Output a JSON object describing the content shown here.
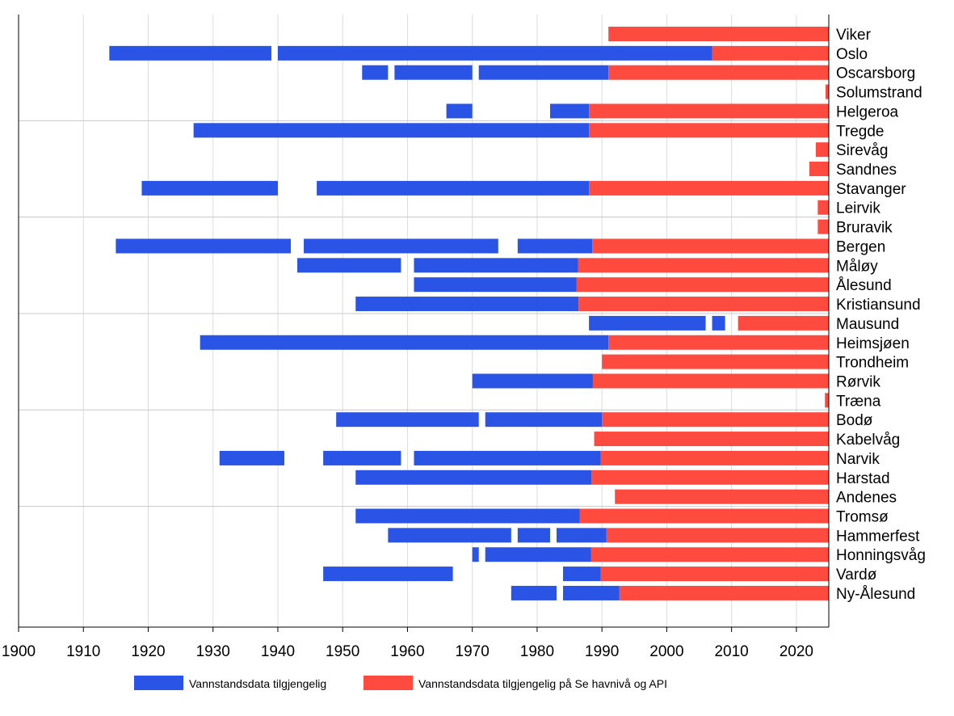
{
  "chart_data": {
    "type": "bar",
    "orientation": "horizontal-timeline",
    "xlim": [
      1900,
      2025
    ],
    "x_ticks": [
      1900,
      1910,
      1920,
      1930,
      1940,
      1950,
      1960,
      1970,
      1980,
      1990,
      2000,
      2010,
      2020
    ],
    "grid": "horizontal separators every 5 stations, vertical gridlines at each decade",
    "legend_placement": "bottom",
    "colors": {
      "historical": "#2a54e6",
      "api": "#ff4a40"
    },
    "series": [
      {
        "key": "historical",
        "name": "Vannstandsdata tilgjengelig"
      },
      {
        "key": "api",
        "name": "Vannstandsdata tilgjengelig på Se havnivå og API"
      }
    ],
    "stations": [
      {
        "name": "Viker",
        "historical": [],
        "api": [
          [
            1991,
            2025
          ]
        ]
      },
      {
        "name": "Oslo",
        "historical": [
          [
            1914,
            1939
          ],
          [
            1940,
            2007
          ]
        ],
        "api": [
          [
            2007,
            2025
          ]
        ]
      },
      {
        "name": "Oscarsborg",
        "historical": [
          [
            1953,
            1957
          ],
          [
            1958,
            1970
          ],
          [
            1971,
            1991
          ]
        ],
        "api": [
          [
            1991,
            2025
          ]
        ]
      },
      {
        "name": "Solumstrand",
        "historical": [],
        "api": [
          [
            2024.5,
            2025
          ]
        ]
      },
      {
        "name": "Helgeroa",
        "historical": [
          [
            1966,
            1970
          ],
          [
            1982,
            1988
          ]
        ],
        "api": [
          [
            1988,
            2025
          ]
        ]
      },
      {
        "name": "Tregde",
        "historical": [
          [
            1927,
            1988
          ]
        ],
        "api": [
          [
            1988,
            2025
          ]
        ]
      },
      {
        "name": "Sirevåg",
        "historical": [],
        "api": [
          [
            2023,
            2025
          ]
        ]
      },
      {
        "name": "Sandnes",
        "historical": [],
        "api": [
          [
            2022,
            2025
          ]
        ]
      },
      {
        "name": "Stavanger",
        "historical": [
          [
            1919,
            1940
          ],
          [
            1946,
            1988
          ]
        ],
        "api": [
          [
            1988,
            2025
          ]
        ]
      },
      {
        "name": "Leirvik",
        "historical": [],
        "api": [
          [
            2023.3,
            2025
          ]
        ]
      },
      {
        "name": "Bruravik",
        "historical": [],
        "api": [
          [
            2023.3,
            2025
          ]
        ]
      },
      {
        "name": "Bergen",
        "historical": [
          [
            1915,
            1942
          ],
          [
            1944,
            1974
          ],
          [
            1977,
            1988.5
          ]
        ],
        "api": [
          [
            1988.5,
            2025
          ]
        ]
      },
      {
        "name": "Måløy",
        "historical": [
          [
            1943,
            1959
          ],
          [
            1961,
            1986.3
          ]
        ],
        "api": [
          [
            1986.3,
            2025
          ]
        ]
      },
      {
        "name": "Ålesund",
        "historical": [
          [
            1961,
            1986.1
          ]
        ],
        "api": [
          [
            1986.1,
            2025
          ]
        ]
      },
      {
        "name": "Kristiansund",
        "historical": [
          [
            1952,
            1986.4
          ]
        ],
        "api": [
          [
            1986.4,
            2025
          ]
        ]
      },
      {
        "name": "Mausund",
        "historical": [
          [
            1988,
            2006
          ],
          [
            2007,
            2009
          ]
        ],
        "api": [
          [
            2011,
            2025
          ]
        ]
      },
      {
        "name": "Heimsjøen",
        "historical": [
          [
            1928,
            1991
          ]
        ],
        "api": [
          [
            1991,
            2025
          ]
        ]
      },
      {
        "name": "Trondheim",
        "historical": [],
        "api": [
          [
            1990,
            2025
          ]
        ]
      },
      {
        "name": "Rørvik",
        "historical": [
          [
            1970,
            1988.6
          ]
        ],
        "api": [
          [
            1988.6,
            2025
          ]
        ]
      },
      {
        "name": "Træna",
        "historical": [],
        "api": [
          [
            2024.4,
            2025
          ]
        ]
      },
      {
        "name": "Bodø",
        "historical": [
          [
            1949,
            1971
          ],
          [
            1972,
            1990
          ]
        ],
        "api": [
          [
            1990,
            2025
          ]
        ]
      },
      {
        "name": "Kabelvåg",
        "historical": [],
        "api": [
          [
            1988.8,
            2025
          ]
        ]
      },
      {
        "name": "Narvik",
        "historical": [
          [
            1931,
            1941
          ],
          [
            1947,
            1959
          ],
          [
            1961,
            1989.8
          ]
        ],
        "api": [
          [
            1989.8,
            2025
          ]
        ]
      },
      {
        "name": "Harstad",
        "historical": [
          [
            1952,
            1988.4
          ]
        ],
        "api": [
          [
            1988.4,
            2025
          ]
        ]
      },
      {
        "name": "Andenes",
        "historical": [],
        "api": [
          [
            1992,
            2025
          ]
        ]
      },
      {
        "name": "Tromsø",
        "historical": [
          [
            1952,
            1986.6
          ]
        ],
        "api": [
          [
            1986.6,
            2025
          ]
        ]
      },
      {
        "name": "Hammerfest",
        "historical": [
          [
            1957,
            1976
          ],
          [
            1977,
            1982
          ],
          [
            1983,
            1990.7
          ]
        ],
        "api": [
          [
            1990.7,
            2025
          ]
        ]
      },
      {
        "name": "Honningsvåg",
        "historical": [
          [
            1970,
            1971
          ],
          [
            1972,
            1988.3
          ]
        ],
        "api": [
          [
            1988.3,
            2025
          ]
        ]
      },
      {
        "name": "Vardø",
        "historical": [
          [
            1947,
            1967
          ],
          [
            1984,
            1989.8
          ]
        ],
        "api": [
          [
            1989.8,
            2025
          ]
        ]
      },
      {
        "name": "Ny-Ålesund",
        "historical": [
          [
            1976,
            1983
          ],
          [
            1984,
            1992.7
          ]
        ],
        "api": [
          [
            1992.7,
            2025
          ]
        ]
      }
    ]
  }
}
